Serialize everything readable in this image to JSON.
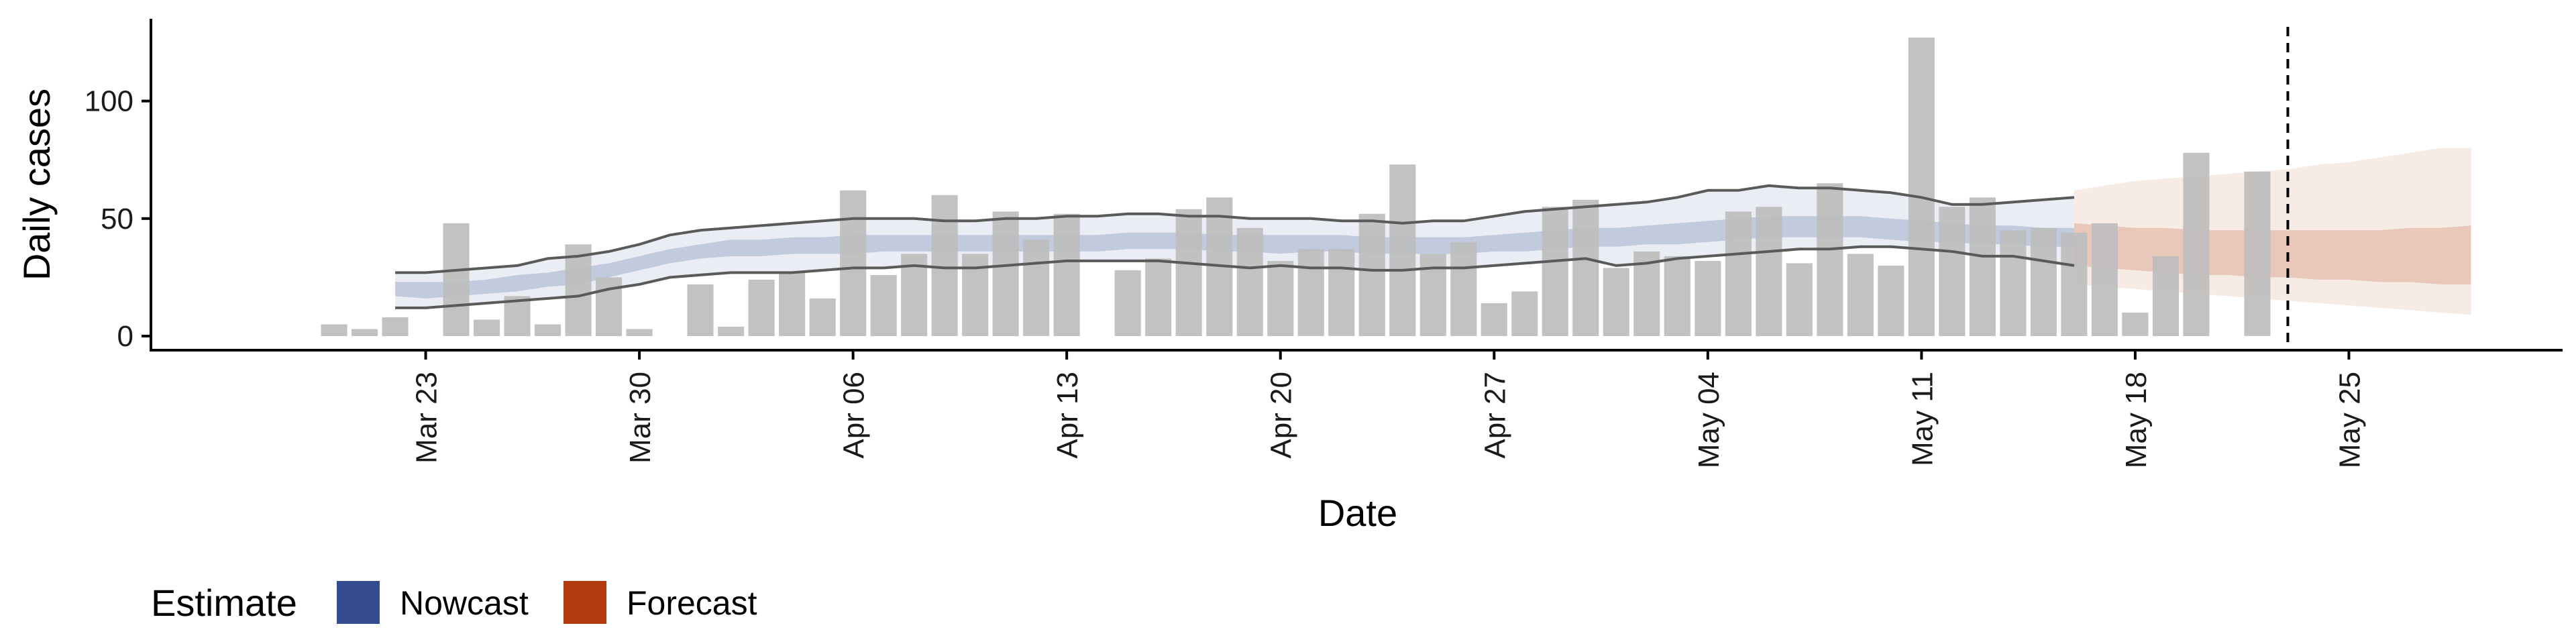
{
  "chart_data": {
    "type": "bar",
    "xlabel": "Date",
    "ylabel": "Daily cases",
    "x_start": "2020-03-20",
    "xlim": [
      "2020-03-14",
      "2020-06-01"
    ],
    "ylim": [
      -6,
      135
    ],
    "x_ticks": [
      {
        "date": "2020-03-23",
        "label": "Mar 23"
      },
      {
        "date": "2020-03-30",
        "label": "Mar 30"
      },
      {
        "date": "2020-04-06",
        "label": "Apr 06"
      },
      {
        "date": "2020-04-13",
        "label": "Apr 13"
      },
      {
        "date": "2020-04-20",
        "label": "Apr 20"
      },
      {
        "date": "2020-04-27",
        "label": "Apr 27"
      },
      {
        "date": "2020-05-04",
        "label": "May 04"
      },
      {
        "date": "2020-05-11",
        "label": "May 11"
      },
      {
        "date": "2020-05-18",
        "label": "May 18"
      },
      {
        "date": "2020-05-25",
        "label": "May 25"
      }
    ],
    "y_ticks": [
      {
        "value": 0,
        "label": "0"
      },
      {
        "value": 50,
        "label": "50"
      },
      {
        "value": 100,
        "label": "100"
      }
    ],
    "cases": [
      5,
      3,
      8,
      0,
      48,
      7,
      17,
      5,
      39,
      25,
      3,
      0,
      22,
      4,
      24,
      27,
      16,
      62,
      26,
      35,
      60,
      35,
      53,
      41,
      52,
      0,
      28,
      33,
      54,
      59,
      46,
      32,
      37,
      37,
      52,
      73,
      35,
      40,
      14,
      19,
      55,
      58,
      29,
      36,
      34,
      32,
      53,
      55,
      31,
      65,
      35,
      30,
      127,
      55,
      59,
      45,
      46,
      44,
      48,
      10,
      34,
      78,
      0,
      70
    ],
    "vertical_line_date": "2020-05-23",
    "nowcast": {
      "start_date": "2020-03-22",
      "median": [
        20,
        19,
        20,
        21,
        23,
        24,
        25,
        28,
        31,
        34,
        36,
        37,
        37,
        38,
        38,
        39,
        39,
        40,
        39,
        39,
        40,
        39,
        39,
        40,
        40,
        40,
        40,
        40,
        39,
        39,
        40,
        39,
        39,
        38,
        38,
        39,
        39,
        40,
        41,
        42,
        42,
        43,
        43,
        44,
        45,
        46,
        47,
        47,
        46,
        45,
        45,
        44,
        43,
        43,
        42,
        42
      ],
      "inner_lower": [
        17,
        16,
        17,
        18,
        19,
        21,
        22,
        25,
        28,
        31,
        33,
        34,
        34,
        35,
        35,
        35,
        36,
        36,
        36,
        36,
        36,
        36,
        36,
        36,
        37,
        37,
        37,
        36,
        36,
        35,
        36,
        36,
        35,
        35,
        35,
        35,
        36,
        36,
        37,
        38,
        38,
        39,
        39,
        40,
        41,
        42,
        42,
        42,
        42,
        41,
        40,
        40,
        39,
        39,
        38,
        38
      ],
      "inner_upper": [
        23,
        23,
        23,
        24,
        26,
        27,
        29,
        31,
        34,
        37,
        39,
        41,
        41,
        42,
        42,
        43,
        43,
        43,
        43,
        43,
        43,
        43,
        43,
        43,
        44,
        44,
        44,
        43,
        43,
        43,
        43,
        43,
        42,
        42,
        42,
        42,
        43,
        44,
        45,
        46,
        46,
        47,
        48,
        49,
        50,
        51,
        51,
        51,
        51,
        50,
        49,
        48,
        47,
        47,
        46,
        46
      ],
      "outer_lower": [
        12,
        12,
        13,
        14,
        15,
        16,
        17,
        20,
        22,
        25,
        26,
        27,
        27,
        27,
        28,
        29,
        29,
        30,
        29,
        29,
        30,
        31,
        32,
        32,
        32,
        32,
        31,
        30,
        29,
        30,
        29,
        29,
        28,
        28,
        29,
        29,
        30,
        31,
        32,
        33,
        30,
        31,
        33,
        34,
        35,
        36,
        37,
        37,
        38,
        38,
        37,
        36,
        34,
        34,
        32,
        30
      ],
      "outer_upper": [
        27,
        27,
        28,
        29,
        30,
        33,
        34,
        36,
        39,
        43,
        45,
        46,
        47,
        48,
        49,
        50,
        50,
        50,
        49,
        49,
        50,
        50,
        51,
        51,
        52,
        52,
        51,
        51,
        50,
        50,
        50,
        49,
        49,
        48,
        49,
        49,
        51,
        53,
        54,
        55,
        56,
        57,
        59,
        62,
        62,
        64,
        63,
        63,
        62,
        61,
        59,
        56,
        56,
        57,
        58,
        59
      ]
    },
    "forecast": {
      "start_date": "2020-05-16",
      "median": [
        38,
        37,
        36,
        36,
        35,
        35,
        35,
        34,
        34,
        33,
        33,
        32,
        32,
        31
      ],
      "inner_lower": [
        30,
        29,
        28,
        27,
        26,
        26,
        25,
        25,
        24,
        24,
        23,
        23,
        22,
        22
      ],
      "inner_upper": [
        48,
        47,
        46,
        46,
        45,
        45,
        45,
        45,
        45,
        45,
        45,
        46,
        46,
        47
      ],
      "outer_lower": [
        22,
        21,
        20,
        19,
        18,
        17,
        16,
        15,
        14,
        13,
        12,
        11,
        10,
        9
      ],
      "outer_upper": [
        62,
        64,
        66,
        67,
        68,
        69,
        70,
        71,
        73,
        74,
        76,
        78,
        80,
        80
      ]
    },
    "legend": {
      "title": "Estimate",
      "position": "bottom-left",
      "items": [
        {
          "label": "Nowcast",
          "color": "#354d8f"
        },
        {
          "label": "Forecast",
          "color": "#b33a0c"
        }
      ]
    },
    "colors": {
      "bar": "#bdbdbd",
      "nowcast": "#354d8f",
      "forecast": "#b33a0c",
      "outline": "#5a5a5a"
    }
  }
}
